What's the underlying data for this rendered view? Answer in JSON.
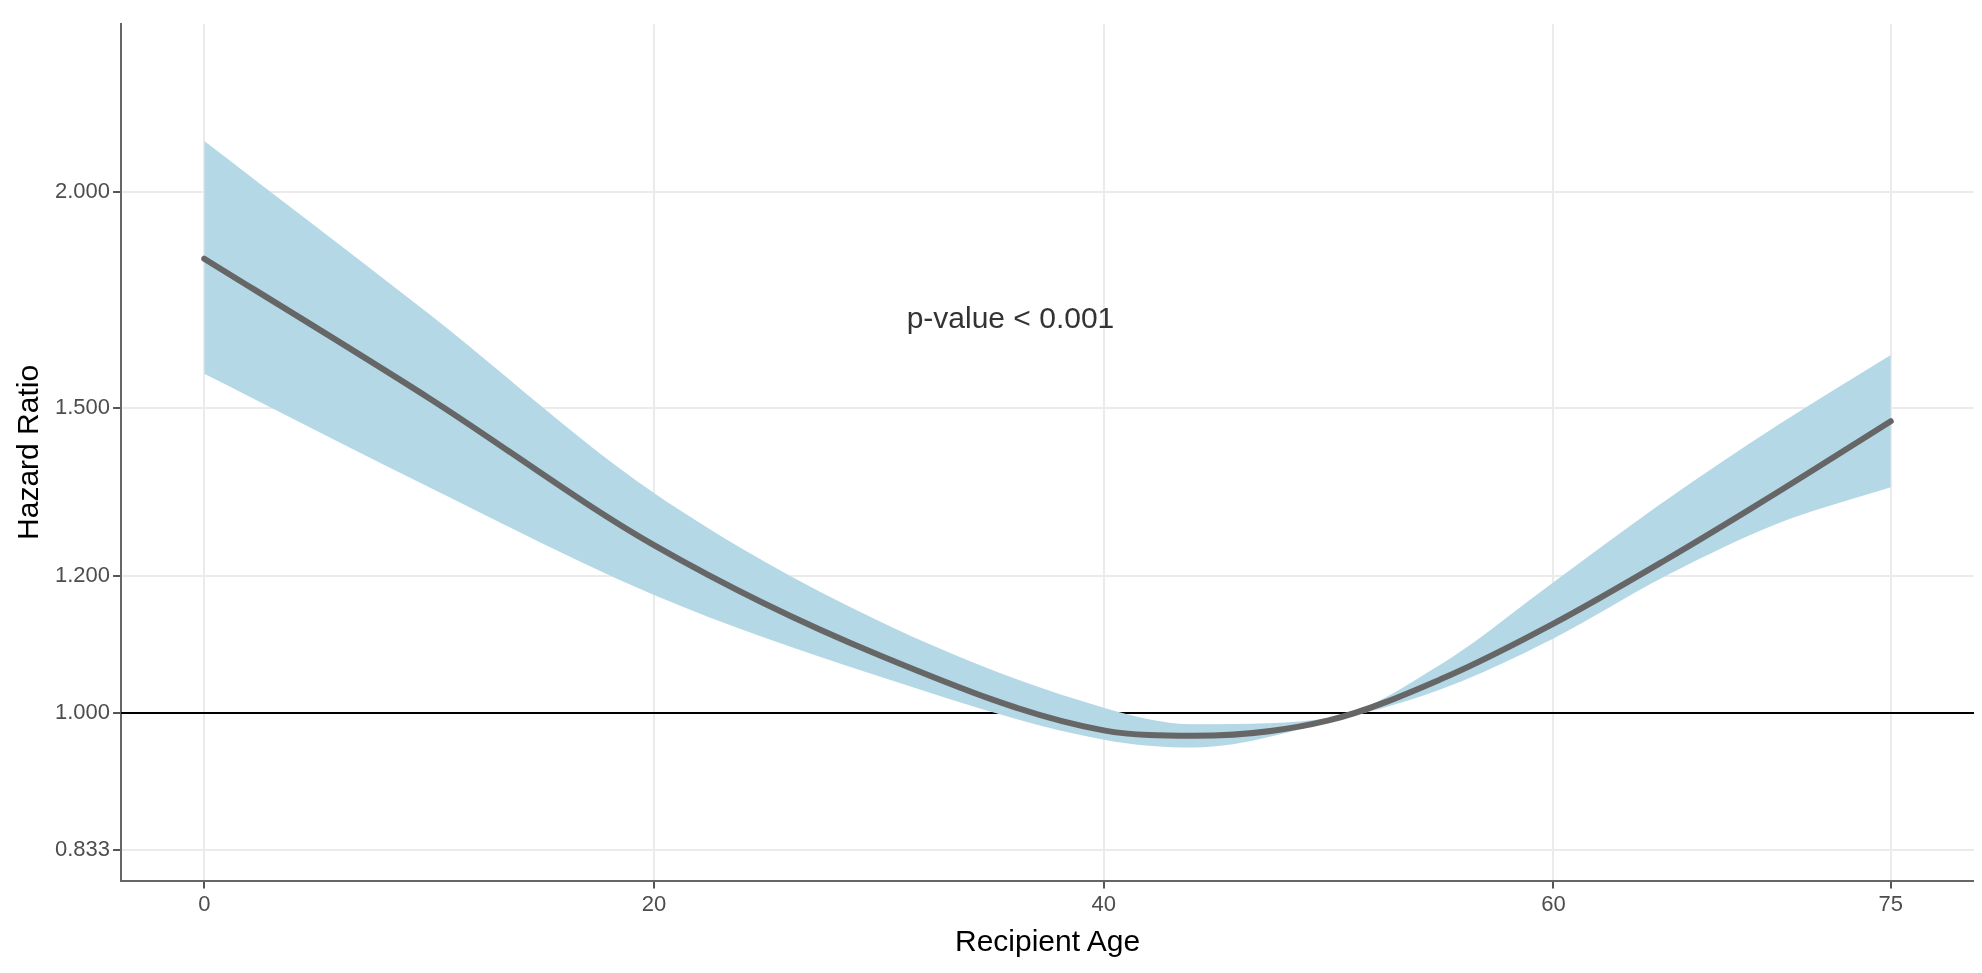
{
  "chart_data": {
    "type": "line",
    "xlabel": "Recipient Age",
    "ylabel": "Hazard Ratio",
    "log": "y",
    "grid": true,
    "legend": false,
    "marker": "none",
    "line_style": "solid",
    "xlim": [
      -3.7,
      78.7
    ],
    "xticks": [
      0,
      20,
      40,
      60,
      75
    ],
    "ylim": [
      0.8,
      2.5
    ],
    "yticks": [
      {
        "value": 0.833,
        "label": "0.833"
      },
      {
        "value": 1,
        "label": "1.000"
      },
      {
        "value": 1.2,
        "label": "1.200"
      },
      {
        "value": 1.5,
        "label": "1.500"
      },
      {
        "value": 2,
        "label": "2.000"
      }
    ],
    "ref_lines": [
      {
        "axis": "y",
        "value": 1,
        "color": "#000000"
      }
    ],
    "annotations": [
      "p-value < 0.001"
    ],
    "series": [
      {
        "color": "#666666",
        "x": [
          0,
          10,
          20,
          30,
          40,
          44,
          50,
          55,
          60,
          65,
          70,
          75
        ],
        "values": [
          1.83,
          1.52,
          1.25,
          1.08,
          0.977,
          0.97,
          0.99,
          1.046,
          1.126,
          1.226,
          1.342,
          1.474
        ],
        "lower": [
          1.57,
          1.35,
          1.17,
          1.05,
          0.965,
          0.955,
          0.988,
          1.032,
          1.104,
          1.2,
          1.287,
          1.35
        ],
        "upper": [
          2.14,
          1.7,
          1.34,
          1.13,
          1.007,
          0.985,
          0.993,
          1.067,
          1.19,
          1.327,
          1.467,
          1.61
        ]
      }
    ]
  }
}
